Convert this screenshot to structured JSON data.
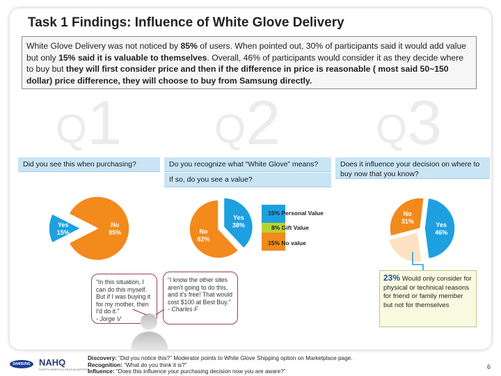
{
  "slide": {
    "title": "Task 1 Findings: Influence of White Glove Delivery",
    "summary_parts": [
      {
        "text": "White Glove Delivery was not noticed by ",
        "bold": false
      },
      {
        "text": "85%",
        "bold": true
      },
      {
        "text": " of users. When pointed out, 30% of participants said it would add value but only ",
        "bold": false
      },
      {
        "text": "15% said it is valuable to themselves",
        "bold": true
      },
      {
        "text": ". Overall,  46% of participants would consider it as they decide where to buy but ",
        "bold": false
      },
      {
        "text": "they will first consider price and then if the difference in price is reasonable ( most said 50~150 dollar) price difference, they will choose to buy from Samsung directly.",
        "bold": true
      }
    ],
    "page_number": "6"
  },
  "questions": {
    "q1": {
      "q": "Q",
      "num": "1",
      "text": "Did you see this when purchasing?"
    },
    "q2": {
      "q": "Q",
      "num": "2",
      "text": "Do you recognize what “White Glove” means?",
      "text2": "If so, do you see a value?"
    },
    "q3": {
      "q": "Q",
      "num": "3",
      "text": "Does it influence your decision on where to buy now that you know?"
    }
  },
  "chart_data": [
    {
      "type": "pie",
      "slices": [
        {
          "label": "Yes",
          "value": 15,
          "pct_text": "15%",
          "color": "#1ea0e0"
        },
        {
          "label": "No",
          "value": 85,
          "pct_text": "85%",
          "color": "#f28a1c"
        }
      ]
    },
    {
      "type": "pie",
      "slices": [
        {
          "label": "No",
          "value": 62,
          "pct_text": "62%",
          "color": "#f28a1c"
        },
        {
          "label": "Yes",
          "value": 38,
          "pct_text": "38%",
          "color": "#1ea0e0"
        }
      ],
      "breakdown": [
        {
          "label": "15% Personal Value",
          "value": 15,
          "color": "#1ea0e0"
        },
        {
          "label": "8% Gift Value",
          "value": 8,
          "color": "#b8d430"
        },
        {
          "label": "15% No value",
          "value": 15,
          "color": "#f28a1c"
        }
      ]
    },
    {
      "type": "pie",
      "slices": [
        {
          "label": "Yes",
          "value": 46,
          "pct_text": "46%",
          "color": "#1ea0e0"
        },
        {
          "label": "",
          "value": 23,
          "pct_text": "",
          "color": "#fde3c4"
        },
        {
          "label": "No",
          "value": 31,
          "pct_text": "31%",
          "color": "#f28a1c"
        }
      ]
    }
  ],
  "quotes": [
    {
      "text": "“In this situation, I can do this myself. But if I was buying it for my mother, then I'd do it.”",
      "author": "- Jorge V"
    },
    {
      "text": "“I know the other sites aren't going to do this, and it's free! That would cost $100 at Best Buy.”",
      "author": "- Charles F"
    }
  ],
  "callout": {
    "pct": "23%",
    "text": " Would only consider for physical or technical reasons for friend or family member but not for themselves"
  },
  "footer": {
    "discovery_label": "Discovery:",
    "discovery_text": " “Did you notice this?” Moderator points to White Glove Shipping option on Marketplace page.",
    "recognition_label": "Recognition:",
    "recognition_text": " “What do you think it is?”",
    "influence_label": "Influence:",
    "influence_text": " “Does this influence your purchasing decision now you are aware?”"
  },
  "logos": {
    "samsung": "SAMSUNG",
    "nahq": "NAHQ",
    "nahq_sub": "NORTH AMERICA HEADQUARTERS"
  }
}
